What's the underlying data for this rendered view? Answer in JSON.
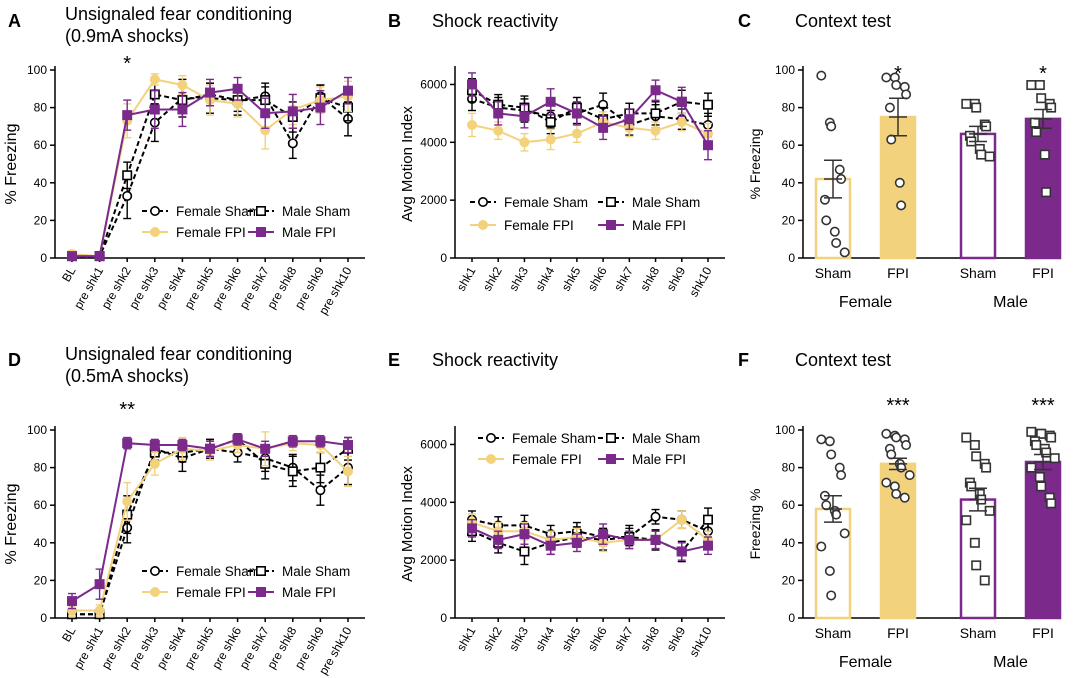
{
  "figure": {
    "colors": {
      "sham": "#000000",
      "female_fpi": "#f3d27e",
      "male_fpi": "#7b2a8c"
    },
    "panels": {
      "A": "A",
      "B": "B",
      "C": "C",
      "D": "D",
      "E": "E",
      "F": "F"
    }
  },
  "chart_data": [
    {
      "id": "A",
      "type": "line",
      "title_lines": [
        "Unsignaled fear conditioning",
        "(0.9mA shocks)"
      ],
      "ylabel": "% Freezing",
      "ylim": [
        0,
        100
      ],
      "yticks": [
        0,
        20,
        40,
        60,
        80,
        100
      ],
      "categories": [
        "BL",
        "pre shk1",
        "pre shk2",
        "pre shk3",
        "pre shk4",
        "pre shk5",
        "pre shk6",
        "pre shk7",
        "pre shk8",
        "pre shk9",
        "pre shk10"
      ],
      "annotation": {
        "text": "*",
        "category_index": 2
      },
      "legend": [
        "Female Sham",
        "Male Sham",
        "Female FPI",
        "Male FPI"
      ],
      "series": [
        {
          "name": "Female Sham",
          "style": "female_sham",
          "values": [
            1,
            1,
            33,
            72,
            85,
            85,
            84,
            86,
            61,
            86,
            74
          ],
          "err": [
            1,
            1,
            12,
            10,
            10,
            8,
            8,
            7,
            8,
            6,
            9
          ]
        },
        {
          "name": "Male Sham",
          "style": "male_sham",
          "values": [
            1,
            1,
            44,
            87,
            84,
            87,
            84,
            84,
            75,
            85,
            80
          ],
          "err": [
            1,
            1,
            7,
            8,
            7,
            6,
            6,
            7,
            8,
            7,
            7
          ]
        },
        {
          "name": "Female FPI",
          "style": "female_fpi",
          "values": [
            2,
            1,
            73,
            95,
            92,
            84,
            82,
            68,
            79,
            84,
            86
          ],
          "err": [
            2,
            1,
            9,
            3,
            5,
            8,
            7,
            10,
            8,
            7,
            8
          ]
        },
        {
          "name": "Male FPI",
          "style": "male_fpi",
          "values": [
            1,
            1,
            76,
            79,
            79,
            88,
            90,
            77,
            78,
            80,
            89
          ],
          "err": [
            1,
            1,
            8,
            10,
            9,
            7,
            6,
            8,
            9,
            9,
            7
          ]
        }
      ]
    },
    {
      "id": "B",
      "type": "line",
      "title_lines": [
        "Shock reactivity"
      ],
      "ylabel": "Avg Motion Index",
      "ylim": [
        0,
        6500
      ],
      "yticks": [
        0,
        2000,
        4000,
        6000
      ],
      "categories": [
        "shk1",
        "shk2",
        "shk3",
        "shk4",
        "shk5",
        "shk6",
        "shk7",
        "shk8",
        "shk9",
        "shk10"
      ],
      "legend": [
        "Female Sham",
        "Male Sham",
        "Female FPI",
        "Male FPI"
      ],
      "series": [
        {
          "name": "Female Sham",
          "style": "female_sham",
          "values": [
            5500,
            5200,
            5100,
            4900,
            5000,
            5300,
            4600,
            4900,
            4800,
            4600
          ],
          "err": [
            400,
            350,
            400,
            400,
            350,
            400,
            350,
            400,
            350,
            400
          ]
        },
        {
          "name": "Male Sham",
          "style": "male_sham",
          "values": [
            5800,
            5300,
            5200,
            4700,
            5200,
            4800,
            5000,
            5000,
            5400,
            5300
          ],
          "err": [
            400,
            350,
            400,
            400,
            350,
            400,
            350,
            400,
            400,
            400
          ]
        },
        {
          "name": "Female FPI",
          "style": "female_fpi",
          "values": [
            4600,
            4400,
            4000,
            4100,
            4300,
            4700,
            4500,
            4400,
            4700,
            4300
          ],
          "err": [
            400,
            300,
            300,
            350,
            300,
            350,
            300,
            300,
            300,
            350
          ]
        },
        {
          "name": "Male FPI",
          "style": "male_fpi",
          "values": [
            6000,
            5000,
            4900,
            5400,
            5000,
            4500,
            4800,
            5800,
            5400,
            3900
          ],
          "err": [
            400,
            400,
            400,
            450,
            400,
            400,
            350,
            350,
            500,
            500
          ]
        }
      ]
    },
    {
      "id": "C",
      "type": "bar",
      "title_lines": [
        "Context test"
      ],
      "ylabel": "% Freezing",
      "ylim": [
        0,
        100
      ],
      "yticks": [
        0,
        20,
        40,
        60,
        80,
        100
      ],
      "bars": [
        {
          "label": "Sham",
          "group": "Female",
          "style": "female_sham",
          "mean": 42,
          "sem": 10,
          "points": [
            97,
            72,
            70,
            47,
            42,
            31,
            20,
            14,
            8,
            3
          ],
          "sig": ""
        },
        {
          "label": "FPI",
          "group": "Female",
          "style": "female_fpi",
          "mean": 75,
          "sem": 10,
          "points": [
            96,
            96,
            92,
            91,
            87,
            80,
            63,
            40,
            28
          ],
          "sig": "*"
        },
        {
          "label": "Sham",
          "group": "Male",
          "style": "male_sham",
          "mean": 66,
          "sem": 4,
          "points": [
            82,
            82,
            80,
            71,
            70,
            65,
            62,
            58,
            55,
            54
          ],
          "sig": ""
        },
        {
          "label": "FPI",
          "group": "Male",
          "style": "male_fpi",
          "mean": 74,
          "sem": 5,
          "points": [
            92,
            92,
            85,
            82,
            80,
            72,
            67,
            55,
            35
          ],
          "sig": "*"
        }
      ],
      "groups": [
        "Female",
        "Male"
      ]
    },
    {
      "id": "D",
      "type": "line",
      "title_lines": [
        "Unsignaled fear conditioning",
        "(0.5mA shocks)"
      ],
      "ylabel": "% Freezing",
      "ylim": [
        0,
        100
      ],
      "yticks": [
        0,
        20,
        40,
        60,
        80,
        100
      ],
      "categories": [
        "BL",
        "pre shk1",
        "pre shk2",
        "pre shk3",
        "pre shk4",
        "pre shk5",
        "pre shk6",
        "pre shk7",
        "pre shk8",
        "pre shk9",
        "pre shk10"
      ],
      "annotation": {
        "text": "**",
        "category_index": 2
      },
      "legend": [
        "Female Sham",
        "Male Sham",
        "Female FPI",
        "Male FPI"
      ],
      "series": [
        {
          "name": "Female Sham",
          "style": "female_sham",
          "values": [
            2,
            2,
            48,
            90,
            85,
            90,
            88,
            85,
            80,
            68,
            80
          ],
          "err": [
            2,
            2,
            8,
            4,
            7,
            5,
            5,
            7,
            7,
            8,
            9
          ]
        },
        {
          "name": "Male Sham",
          "style": "male_sham",
          "values": [
            2,
            2,
            55,
            88,
            88,
            90,
            95,
            82,
            78,
            80,
            90
          ],
          "err": [
            2,
            2,
            10,
            4,
            5,
            5,
            3,
            8,
            8,
            8,
            6
          ]
        },
        {
          "name": "Female FPI",
          "style": "female_fpi",
          "values": [
            4,
            4,
            62,
            82,
            90,
            89,
            92,
            90,
            93,
            92,
            78
          ],
          "err": [
            3,
            3,
            10,
            6,
            6,
            5,
            4,
            9,
            4,
            4,
            8
          ]
        },
        {
          "name": "Male FPI",
          "style": "male_fpi",
          "values": [
            9,
            18,
            93,
            92,
            92,
            90,
            95,
            90,
            94,
            94,
            92
          ],
          "err": [
            4,
            8,
            3,
            3,
            3,
            4,
            3,
            4,
            3,
            3,
            4
          ]
        }
      ]
    },
    {
      "id": "E",
      "type": "line",
      "title_lines": [
        "Shock reactivity"
      ],
      "ylabel": "Avg Motion Index",
      "ylim": [
        0,
        6500
      ],
      "yticks": [
        0,
        2000,
        4000,
        6000
      ],
      "categories": [
        "shk1",
        "shk2",
        "shk3",
        "shk4",
        "shk5",
        "shk6",
        "shk7",
        "shk8",
        "shk9",
        "shk10"
      ],
      "legend": [
        "Female Sham",
        "Male Sham",
        "Female FPI",
        "Male FPI"
      ],
      "series": [
        {
          "name": "Female Sham",
          "style": "female_sham",
          "values": [
            3400,
            3200,
            3200,
            2900,
            3000,
            2800,
            2800,
            3500,
            3400,
            3000
          ],
          "err": [
            300,
            300,
            350,
            300,
            300,
            300,
            300,
            250,
            300,
            300
          ]
        },
        {
          "name": "Male Sham",
          "style": "male_sham",
          "values": [
            3000,
            2600,
            2300,
            2600,
            2800,
            2700,
            2800,
            2700,
            2300,
            3400
          ],
          "err": [
            350,
            350,
            450,
            400,
            350,
            350,
            400,
            350,
            350,
            400
          ]
        },
        {
          "name": "Female FPI",
          "style": "female_fpi",
          "values": [
            3300,
            3000,
            3000,
            2700,
            2800,
            2600,
            2700,
            2700,
            3400,
            2700
          ],
          "err": [
            300,
            300,
            300,
            300,
            300,
            300,
            300,
            300,
            300,
            300
          ]
        },
        {
          "name": "Male FPI",
          "style": "male_fpi",
          "values": [
            3100,
            2700,
            2900,
            2500,
            2600,
            2900,
            2700,
            2700,
            2300,
            2500
          ],
          "err": [
            300,
            300,
            350,
            300,
            300,
            350,
            300,
            300,
            300,
            300
          ]
        }
      ]
    },
    {
      "id": "F",
      "type": "bar",
      "title_lines": [
        "Context test"
      ],
      "ylabel": "Freezing %",
      "ylim": [
        0,
        100
      ],
      "yticks": [
        0,
        20,
        40,
        60,
        80,
        100
      ],
      "bars": [
        {
          "label": "Sham",
          "group": "Female",
          "style": "female_sham_bar",
          "mean": 58,
          "sem": 7,
          "points": [
            95,
            94,
            87,
            80,
            76,
            65,
            60,
            57,
            55,
            45,
            38,
            25,
            12
          ],
          "sig": ""
        },
        {
          "label": "FPI",
          "group": "Female",
          "style": "female_fpi",
          "mean": 82,
          "sem": 3,
          "points": [
            98,
            97,
            96,
            95,
            92,
            90,
            87,
            82,
            80,
            76,
            72,
            70,
            66,
            64
          ],
          "sig": "***"
        },
        {
          "label": "Sham",
          "group": "Male",
          "style": "male_sham_bar",
          "mean": 63,
          "sem": 6,
          "points": [
            96,
            92,
            86,
            82,
            80,
            72,
            70,
            66,
            63,
            57,
            52,
            40,
            28,
            20
          ],
          "sig": ""
        },
        {
          "label": "FPI",
          "group": "Male",
          "style": "male_fpi",
          "mean": 83,
          "sem": 4,
          "points": [
            99,
            98,
            98,
            97,
            96,
            94,
            92,
            90,
            88,
            85,
            80,
            75,
            70,
            64,
            61
          ],
          "sig": "***"
        }
      ],
      "groups": [
        "Female",
        "Male"
      ]
    }
  ]
}
